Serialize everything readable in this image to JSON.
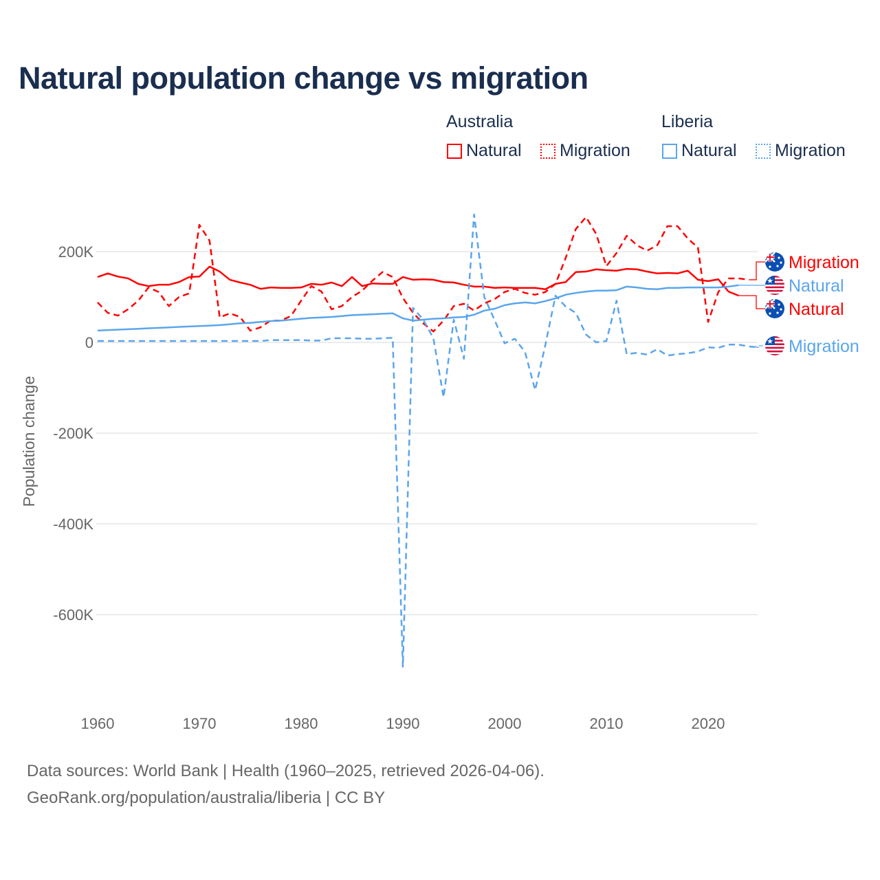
{
  "title": "Natural population change vs migration",
  "legend": {
    "groups": [
      {
        "name": "Australia",
        "color": "#ff0000",
        "items": [
          "Natural",
          "Migration"
        ]
      },
      {
        "name": "Liberia",
        "color": "#5aa5ec",
        "items": [
          "Natural",
          "Migration"
        ]
      }
    ]
  },
  "footer": {
    "line1": "Data sources: World Bank | Health (1960–2025, retrieved 2026-04-06).",
    "line2": "GeoRank.org/population/australia/liberia | CC BY"
  },
  "chart_data": {
    "type": "line",
    "title": "Natural population change vs migration",
    "xlabel": "",
    "ylabel": "Population change",
    "xlim": [
      1960,
      2025
    ],
    "ylim": [
      -760000,
      300000
    ],
    "x_ticks": [
      1960,
      1970,
      1980,
      1990,
      2000,
      2010,
      2020
    ],
    "y_ticks": [
      200000,
      0,
      -200000,
      -400000,
      -600000
    ],
    "y_tick_labels": [
      "200K",
      "0",
      "-200K",
      "-400K",
      "-600K"
    ],
    "grid": true,
    "series": [
      {
        "name": "Australia Natural",
        "label": "Natural",
        "country": "Australia",
        "color": "#ff0000",
        "dash": false,
        "start": 1960,
        "values": [
          144,
          152,
          145,
          141,
          129,
          124,
          127,
          127,
          133,
          144,
          145,
          167,
          156,
          138,
          132,
          127,
          118,
          121,
          120,
          120,
          121,
          129,
          127,
          132,
          124,
          144,
          124,
          130,
          129,
          129,
          144,
          138,
          139,
          138,
          133,
          132,
          127,
          123,
          123,
          120,
          121,
          120,
          120,
          120,
          117,
          129,
          133,
          155,
          156,
          161,
          159,
          158,
          162,
          161,
          156,
          152,
          153,
          152,
          158,
          138,
          135,
          139,
          112,
          103
        ]
      },
      {
        "name": "Australia Migration",
        "label": "Migration",
        "country": "Australia",
        "color": "#ff0000",
        "dash": true,
        "start": 1960,
        "values": [
          88,
          65,
          59,
          73,
          92,
          121,
          111,
          80,
          100,
          108,
          259,
          224,
          55,
          64,
          56,
          26,
          33,
          48,
          48,
          58,
          92,
          124,
          112,
          73,
          80,
          100,
          114,
          136,
          155,
          144,
          98,
          65,
          42,
          24,
          48,
          80,
          85,
          70,
          86,
          95,
          111,
          118,
          109,
          105,
          111,
          129,
          186,
          250,
          276,
          239,
          168,
          197,
          235,
          214,
          202,
          214,
          256,
          256,
          229,
          209,
          45,
          111,
          141,
          141,
          138
        ]
      },
      {
        "name": "Liberia Natural",
        "label": "Natural",
        "country": "Liberia",
        "color": "#5aa5ec",
        "dash": false,
        "start": 1960,
        "values": [
          26,
          27,
          28,
          29,
          30,
          31,
          32,
          33,
          34,
          35,
          36,
          37,
          38,
          40,
          42,
          43,
          45,
          47,
          48,
          50,
          52,
          54,
          55,
          56,
          58,
          60,
          61,
          62,
          63,
          64,
          53,
          48,
          50,
          52,
          53,
          55,
          56,
          61,
          70,
          74,
          82,
          86,
          88,
          86,
          91,
          97,
          105,
          109,
          112,
          114,
          114,
          115,
          123,
          121,
          118,
          117,
          120,
          120,
          121,
          121,
          121,
          121,
          123,
          126
        ]
      },
      {
        "name": "Liberia Migration",
        "label": "Migration",
        "country": "Liberia",
        "color": "#5aa5ec",
        "dash": true,
        "start": 1960,
        "values": [
          3,
          3,
          3,
          3,
          3,
          3,
          3,
          3,
          3,
          3,
          3,
          3,
          3,
          3,
          3,
          3,
          3,
          5,
          5,
          5,
          5,
          4,
          4,
          9,
          9,
          9,
          8,
          8,
          9,
          10,
          -715,
          76,
          50,
          9,
          -121,
          50,
          -36,
          282,
          100,
          50,
          -2,
          8,
          -21,
          -105,
          -6,
          103,
          79,
          65,
          17,
          0,
          3,
          92,
          -26,
          -23,
          -27,
          -15,
          -29,
          -26,
          -24,
          -20,
          -11,
          -12,
          -5,
          -5,
          -9,
          -11
        ]
      }
    ],
    "value_unit": "thousands",
    "end_labels": [
      {
        "text": "Migration",
        "country": "Australia",
        "color": "#ff0000"
      },
      {
        "text": "Natural",
        "country": "Liberia",
        "color": "#5aa5ec"
      },
      {
        "text": "Natural",
        "country": "Australia",
        "color": "#ff0000"
      },
      {
        "text": "Migration",
        "country": "Liberia",
        "color": "#5aa5ec"
      }
    ]
  }
}
